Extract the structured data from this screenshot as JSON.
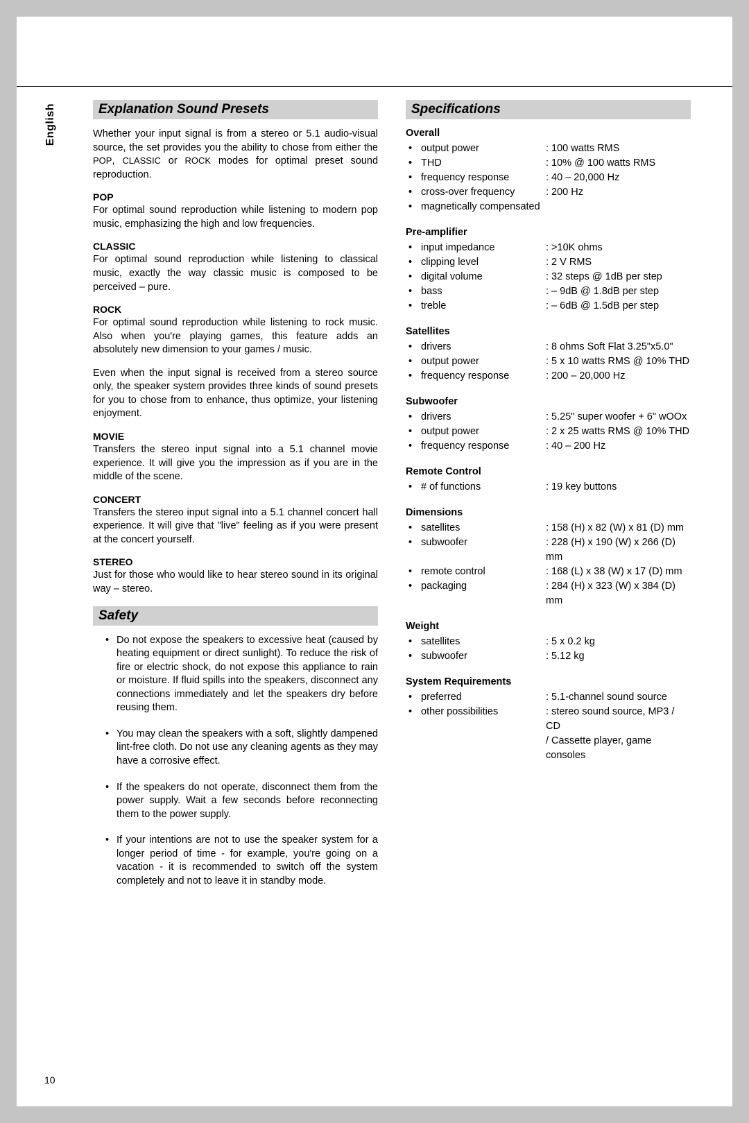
{
  "language_tab": "English",
  "page_number": "10",
  "left": {
    "presets_header": "Explanation Sound Presets",
    "intro_pre": "Whether your input signal is from a stereo or 5.1 audio-visual source, the set provides you the ability to chose from either the ",
    "intro_mode1": "POP",
    "intro_sep1": ", ",
    "intro_mode2": "CLASSIC",
    "intro_sep2": " or ",
    "intro_mode3": "ROCK",
    "intro_post": " modes for optimal preset sound reproduction.",
    "presets": [
      {
        "title": "POP",
        "body": "For optimal sound reproduction while listening to modern pop music, emphasizing the high and low frequencies."
      },
      {
        "title": "CLASSIC",
        "body": "For optimal sound reproduction while listening to classical music, exactly the way classic music is composed to be perceived – pure."
      },
      {
        "title": "ROCK",
        "body": "For optimal sound reproduction while listening to rock music. Also when you're playing games, this feature adds an absolutely new dimension to your games / music."
      }
    ],
    "mid_para": "Even when the input signal is received from a stereo source only, the speaker system provides three kinds of sound presets for you to chose from to enhance, thus optimize, your listening enjoyment.",
    "presets2": [
      {
        "title": "MOVIE",
        "body": "Transfers the stereo input signal into a 5.1 channel movie experience. It will give you the impression as if you are in the middle of the scene."
      },
      {
        "title": "CONCERT",
        "body": "Transfers the stereo input signal into a 5.1 channel concert hall experience. It will give that \"live\" feeling as if you were present at the concert yourself."
      },
      {
        "title": "STEREO",
        "body": "Just for those who would like to hear stereo sound in its original way – stereo."
      }
    ],
    "safety_header": "Safety",
    "safety": [
      "Do not expose the speakers to excessive heat (caused by heating equipment or direct sunlight). To reduce the risk of fire or electric shock, do not expose this appliance to rain or moisture. If fluid spills into the speakers, disconnect any connections immediately and let the speakers dry before reusing them.",
      "You may clean the speakers with a soft, slightly dampened lint-free cloth. Do not use any cleaning agents as they may have a corrosive effect.",
      "If the speakers do not operate, disconnect them from the power supply. Wait a few seconds before reconnecting them to the power supply.",
      "If your intentions are not to use the speaker system for a longer period of time - for example, you're going on a vacation - it is recommended to switch off the system completely and not to leave it in standby mode."
    ]
  },
  "right": {
    "specs_header": "Specifications",
    "groups": [
      {
        "title": "Overall",
        "items": [
          {
            "label": "output power",
            "value": ": 100 watts RMS"
          },
          {
            "label": "THD",
            "value": ": 10% @ 100 watts RMS"
          },
          {
            "label": "frequency response",
            "value": ": 40 – 20,000 Hz"
          },
          {
            "label": "cross-over frequency",
            "value": ": 200 Hz"
          },
          {
            "label": "magnetically compensated",
            "value": ""
          }
        ]
      },
      {
        "title": "Pre-amplifier",
        "items": [
          {
            "label": "input impedance",
            "value": ": >10K ohms"
          },
          {
            "label": "clipping level",
            "value": ": 2 V RMS"
          },
          {
            "label": "digital volume",
            "value": ": 32 steps @ 1dB per step"
          },
          {
            "label": "bass",
            "value": ": – 9dB @ 1.8dB per step"
          },
          {
            "label": "treble",
            "value": ": – 6dB @ 1.5dB per step"
          }
        ]
      },
      {
        "title": "Satellites",
        "items": [
          {
            "label": "drivers",
            "value": ": 8 ohms Soft Flat 3.25\"x5.0\""
          },
          {
            "label": "output power",
            "value": ": 5 x 10 watts RMS @ 10% THD"
          },
          {
            "label": "frequency response",
            "value": ": 200 – 20,000 Hz"
          }
        ]
      },
      {
        "title": "Subwoofer",
        "items": [
          {
            "label": "drivers",
            "value": ": 5.25\" super woofer + 6\" wOOx"
          },
          {
            "label": "output power",
            "value": ": 2 x 25 watts RMS @ 10% THD"
          },
          {
            "label": "frequency response",
            "value": ": 40 – 200 Hz"
          }
        ]
      },
      {
        "title": "Remote Control",
        "items": [
          {
            "label": "# of functions",
            "value": ": 19 key buttons"
          }
        ]
      },
      {
        "title": "Dimensions",
        "items": [
          {
            "label": "satellites",
            "value": ": 158 (H) x  82 (W) x  81 (D) mm"
          },
          {
            "label": "subwoofer",
            "value": ": 228 (H) x 190 (W) x 266 (D) mm"
          },
          {
            "label": "remote control",
            "value": ": 168  (L) x  38 (W) x  17 (D) mm"
          },
          {
            "label": "packaging",
            "value": ": 284 (H) x 323 (W) x 384 (D) mm"
          }
        ]
      },
      {
        "title": "Weight",
        "items": [
          {
            "label": "satellites",
            "value": ": 5 x 0.2 kg"
          },
          {
            "label": "subwoofer",
            "value": ": 5.12 kg"
          }
        ]
      },
      {
        "title": "System Requirements",
        "items": [
          {
            "label": "preferred",
            "value": ": 5.1-channel sound source"
          },
          {
            "label": "other possibilities",
            "value": ": stereo sound source, MP3 / CD",
            "value2": "/ Cassette player, game consoles"
          }
        ]
      }
    ]
  }
}
